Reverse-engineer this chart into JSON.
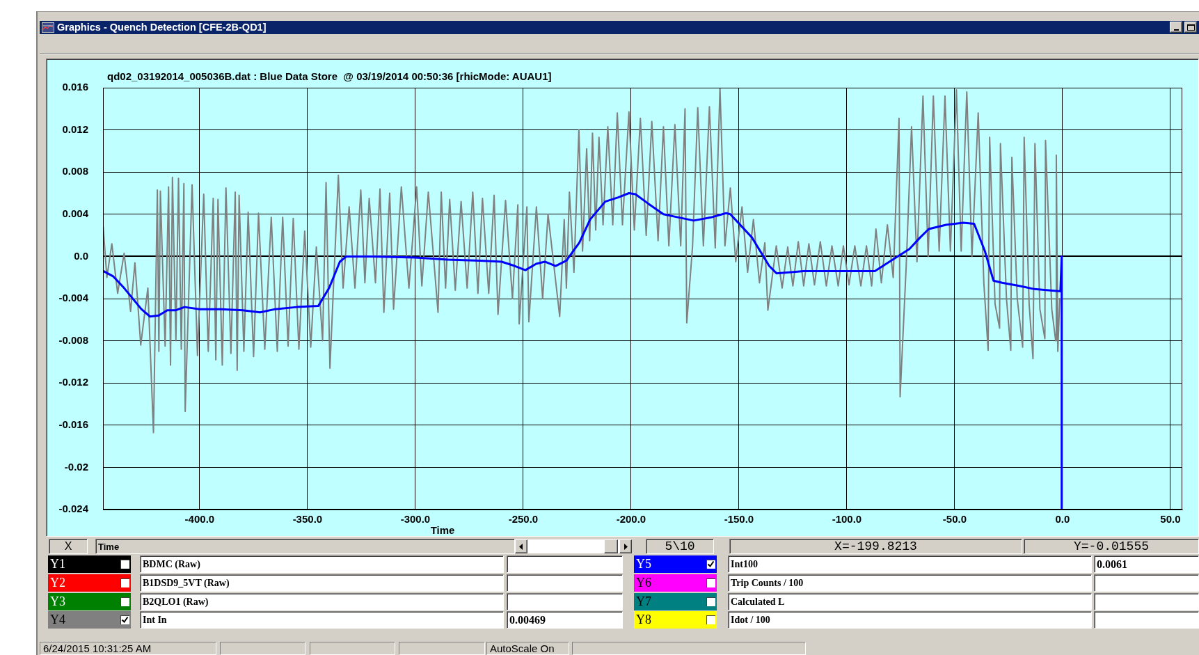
{
  "chart_data": {
    "type": "line",
    "title": "Graphics - Quench Detection [CFE-2B-QD1]",
    "subtitle": "qd02_03192014_005036B.dat : Blue Data Store  @ 03/19/2014 00:50:36 [rhicMode: AUAU1]",
    "xlabel": "Time",
    "xlim": [
      -444.8,
      55.5
    ],
    "xticks": [
      {
        "value": -400,
        "label": "-400.0"
      },
      {
        "value": -350,
        "label": "-350.0"
      },
      {
        "value": -300,
        "label": "-300.0"
      },
      {
        "value": -250,
        "label": "-250.0"
      },
      {
        "value": -200,
        "label": "-200.0"
      },
      {
        "value": -150,
        "label": "-150.0"
      },
      {
        "value": -100,
        "label": "-100.0"
      },
      {
        "value": -50,
        "label": "-50.0"
      },
      {
        "value": 0,
        "label": "0.0"
      },
      {
        "value": 50,
        "label": "50.0"
      }
    ],
    "ylim": [
      -0.024,
      0.016
    ],
    "yticks": [
      -0.024,
      -0.02,
      -0.016,
      -0.012,
      -0.008,
      -0.004,
      {
        "value": 0,
        "label": "0.0"
      },
      0.004,
      0.008,
      0.012,
      0.016
    ],
    "grid": true,
    "legend": "bottom",
    "series": [
      {
        "name": "Int In",
        "color": "#808080",
        "x": [
          -444.7,
          -443,
          -440.7,
          -438,
          -435,
          -432,
          -430,
          -427.3,
          -424,
          -421.4,
          -419.6,
          -418.9,
          -418.2,
          -416,
          -414.4,
          -413.5,
          -412.6,
          -411,
          -409.8,
          -408.5,
          -407.3,
          -406.7,
          -403.5,
          -401,
          -398.1,
          -396,
          -393.7,
          -392.5,
          -391.5,
          -389.5,
          -387.8,
          -385.5,
          -383.5,
          -382.6,
          -381.7,
          -379.5,
          -377.5,
          -375,
          -372.7,
          -369.8,
          -366.8,
          -364,
          -361.5,
          -359,
          -356.6,
          -354,
          -351.3,
          -348.5,
          -345.9,
          -343,
          -341.4,
          -339.6,
          -335.7,
          -333.5,
          -330.7,
          -328,
          -325.3,
          -323.4,
          -321.4,
          -318.5,
          -316.4,
          -314.6,
          -311.9,
          -310.1,
          -306.5,
          -303,
          -299.4,
          -297,
          -294,
          -289.5,
          -288,
          -286,
          -284.1,
          -281.5,
          -278.8,
          -276,
          -273.4,
          -271,
          -268.9,
          -266,
          -263.5,
          -261.7,
          -258.2,
          -255,
          -252.5,
          -251.9,
          -248.3,
          -247.4,
          -243.9,
          -241,
          -238.5,
          -233.1,
          -231,
          -230,
          -228.6,
          -226.5,
          -224.2,
          -222.5,
          -220.6,
          -219.2,
          -217.9,
          -216.4,
          -214.9,
          -213,
          -210.8,
          -208.5,
          -206.4,
          -204,
          -201,
          -198.5,
          -195.7,
          -193,
          -190.4,
          -187.5,
          -185,
          -182.5,
          -179.7,
          -177,
          -175,
          -174.2,
          -171.5,
          -169.1,
          -166.5,
          -163.7,
          -161,
          -158.8,
          -156.5,
          -154,
          -151.5,
          -148.6,
          -146,
          -143.3,
          -140.5,
          -138,
          -136.6,
          -132.7,
          -130,
          -127.4,
          -125,
          -122.5,
          -120,
          -117.6,
          -115,
          -112.3,
          -109.5,
          -106.9,
          -104,
          -101.6,
          -99,
          -96.3,
          -93.5,
          -90.9,
          -88.5,
          -86.5,
          -84,
          -81.2,
          -78.5,
          -75.8,
          -75.3,
          -72.5,
          -70,
          -67.5,
          -64.7,
          -62.3,
          -59.9,
          -57.2,
          -54.5,
          -52,
          -49.2,
          -47,
          -44.4,
          -42,
          -39.1,
          -36.5,
          -34.5,
          -33.8,
          -31.3,
          -29.2,
          -28.8,
          -26,
          -24,
          -23.5,
          -21,
          -18.5,
          -17.8,
          -15.5,
          -13.7,
          -12.8,
          -10.5,
          -8.2,
          -7.9,
          -5,
          -3.2,
          -2.9,
          -2.2,
          -1.3
        ],
        "values": [
          0.0028,
          -0.002,
          0.0012,
          -0.0035,
          0.0003,
          -0.0052,
          -0.0006,
          -0.0084,
          -0.003,
          -0.0167,
          0.0063,
          -0.009,
          0.0062,
          -0.0085,
          0.0066,
          -0.0103,
          0.0075,
          -0.008,
          0.0074,
          -0.0088,
          0.0069,
          -0.0147,
          0.0068,
          -0.0094,
          0.0059,
          -0.009,
          0.0055,
          -0.0098,
          0.0054,
          -0.0103,
          0.0065,
          -0.0092,
          0.0061,
          -0.0108,
          0.0058,
          -0.009,
          0.0042,
          -0.0095,
          0.0041,
          -0.0088,
          0.0037,
          -0.009,
          0.0037,
          -0.0085,
          0.0036,
          -0.0088,
          0.0024,
          -0.0086,
          0.0009,
          -0.008,
          0.007,
          -0.0106,
          0.0077,
          -0.003,
          0.0047,
          -0.003,
          0.0063,
          -0.0025,
          0.0055,
          -0.0025,
          0.0064,
          -0.0053,
          0.006,
          -0.005,
          0.0066,
          -0.003,
          0.0066,
          -0.0028,
          0.0061,
          -0.0053,
          0.0061,
          -0.003,
          0.0054,
          -0.0032,
          0.0052,
          -0.003,
          0.0061,
          -0.0035,
          0.0055,
          -0.0035,
          0.0058,
          -0.0055,
          0.0053,
          -0.004,
          0.0049,
          -0.0064,
          0.0047,
          -0.0062,
          0.0047,
          -0.004,
          0.004,
          -0.0057,
          0.0035,
          -0.003,
          0.0061,
          -0.0015,
          0.012,
          0.0005,
          0.0102,
          0.0015,
          0.0117,
          0.0025,
          0.0113,
          0.003,
          0.0123,
          0.003,
          0.0136,
          0.003,
          0.0137,
          0.0025,
          0.0131,
          0.002,
          0.0128,
          0.0015,
          0.0123,
          0.001,
          0.0125,
          0.001,
          0.014,
          -0.0063,
          0.001,
          0.0141,
          0.001,
          0.0142,
          0.0008,
          0.016,
          0.001,
          0.0065,
          -0.0005,
          0.0047,
          -0.0015,
          0.0035,
          -0.0025,
          0.0013,
          -0.0051,
          0.001,
          -0.003,
          0.0009,
          -0.0028,
          0.0014,
          -0.0028,
          0.0012,
          -0.0027,
          0.0014,
          -0.0028,
          0.001,
          -0.0028,
          0.001,
          -0.0027,
          0.001,
          -0.0028,
          0.001,
          -0.0028,
          0.0026,
          -0.0025,
          0.003,
          -0.002,
          0.0131,
          -0.0133,
          -0.001,
          0.0123,
          -0.0005,
          0.0152,
          0,
          0.0152,
          0.0005,
          0.0152,
          0.0005,
          0.0158,
          0.0005,
          0.0156,
          0,
          0.0136,
          -0.0025,
          -0.0089,
          0.0113,
          -0.0045,
          -0.0068,
          0.0107,
          -0.004,
          -0.0089,
          0.0094,
          -0.004,
          -0.0086,
          0.0113,
          -0.0045,
          -0.0097,
          0.0107,
          -0.005,
          -0.0078,
          0.011,
          -0.005,
          -0.008,
          0.0096,
          -0.009,
          -0.004
        ]
      },
      {
        "name": "Int100",
        "color": "#0000ff",
        "x": [
          -444.5,
          -440,
          -435,
          -427,
          -423,
          -419,
          -415,
          -411,
          -407,
          -400,
          -390,
          -380,
          -372,
          -365,
          -355,
          -345,
          -340,
          -335,
          -332,
          -320,
          -300,
          -285,
          -270,
          -260,
          -254,
          -249,
          -244,
          -240,
          -235,
          -230,
          -224,
          -219,
          -212,
          -206,
          -201,
          -198,
          -192,
          -185,
          -178,
          -171,
          -163,
          -156,
          -154,
          -144,
          -136,
          -132.6,
          -120,
          -100,
          -87,
          -78,
          -71,
          -66,
          -62,
          -54,
          -46,
          -41,
          -36,
          -32,
          -28,
          -20,
          -13,
          -1,
          -0.4,
          -0.4
        ],
        "values": [
          -0.0014,
          -0.0019,
          -0.003,
          -0.005,
          -0.0057,
          -0.0056,
          -0.0051,
          -0.0051,
          -0.0048,
          -0.005,
          -0.005,
          -0.0051,
          -0.0053,
          -0.005,
          -0.0048,
          -0.0047,
          -0.003,
          -0.0005,
          0,
          0,
          -0.0001,
          -0.0003,
          -0.0004,
          -0.0005,
          -0.0009,
          -0.0013,
          -0.0007,
          -0.0005,
          -0.0009,
          -0.0004,
          0.0013,
          0.0035,
          0.0052,
          0.0056,
          0.006,
          0.0059,
          0.005,
          0.004,
          0.0037,
          0.0034,
          0.0037,
          0.0041,
          0.004,
          0.0018,
          -0.0009,
          -0.0016,
          -0.0014,
          -0.0014,
          -0.0014,
          -0.0002,
          0.0007,
          0.0018,
          0.0026,
          0.003,
          0.0032,
          0.0031,
          0.0005,
          -0.0023,
          -0.0025,
          -0.0028,
          -0.0031,
          -0.0033,
          0,
          -0.024
        ]
      }
    ],
    "annotations": [
      "X",
      "Time",
      "5\\10",
      "X=-199.8213",
      "Y=-0.01555",
      "Y1",
      "BDMC (Raw)",
      "Y2",
      "B1DSD9_5VT (Raw)",
      "Y3",
      "B2QLO1 (Raw)",
      "Y4",
      "0.00469",
      "Y5",
      "0.0061",
      "Y6",
      "Trip Counts / 100",
      "Y7",
      "Calculated L",
      "Y8",
      "Idot / 100",
      "6/24/2015 10:31:25 AM",
      "AutoScale On"
    ]
  }
}
